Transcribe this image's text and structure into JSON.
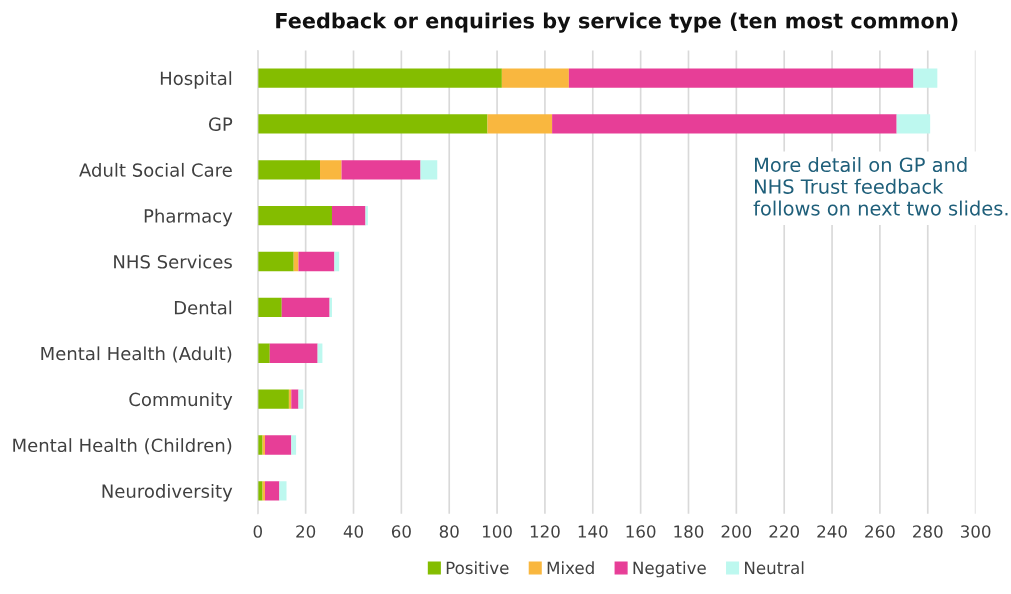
{
  "chart_data": {
    "type": "bar",
    "orientation": "horizontal",
    "stacked": true,
    "title": "Feedback or enquiries by service type (ten most common)",
    "categories": [
      "Hospital",
      "GP",
      "Adult Social Care",
      "Pharmacy",
      "NHS Services",
      "Dental",
      "Mental Health (Adult)",
      "Community",
      "Mental Health (Children)",
      "Neurodiversity"
    ],
    "series": [
      {
        "name": "Positive",
        "color": "#84bd00",
        "values": [
          102,
          96,
          26,
          31,
          15,
          10,
          5,
          13,
          2,
          2
        ]
      },
      {
        "name": "Mixed",
        "color": "#f9b73f",
        "values": [
          28,
          27,
          9,
          0,
          2,
          0,
          0,
          1,
          1,
          1
        ]
      },
      {
        "name": "Negative",
        "color": "#e73e97",
        "values": [
          144,
          144,
          33,
          14,
          15,
          20,
          20,
          3,
          11,
          6
        ]
      },
      {
        "name": "Neutral",
        "color": "#bdf8ef",
        "values": [
          10,
          14,
          7,
          1,
          2,
          1,
          2,
          2,
          2,
          3
        ]
      }
    ],
    "xlim": [
      0,
      300
    ],
    "xticks": [
      0,
      20,
      40,
      60,
      80,
      100,
      120,
      140,
      160,
      180,
      200,
      220,
      240,
      260,
      280,
      300
    ],
    "grid": "x",
    "legend": "bottom",
    "annotations": [
      "More detail on GP and NHS Trust feedback follows on next two slides."
    ]
  }
}
